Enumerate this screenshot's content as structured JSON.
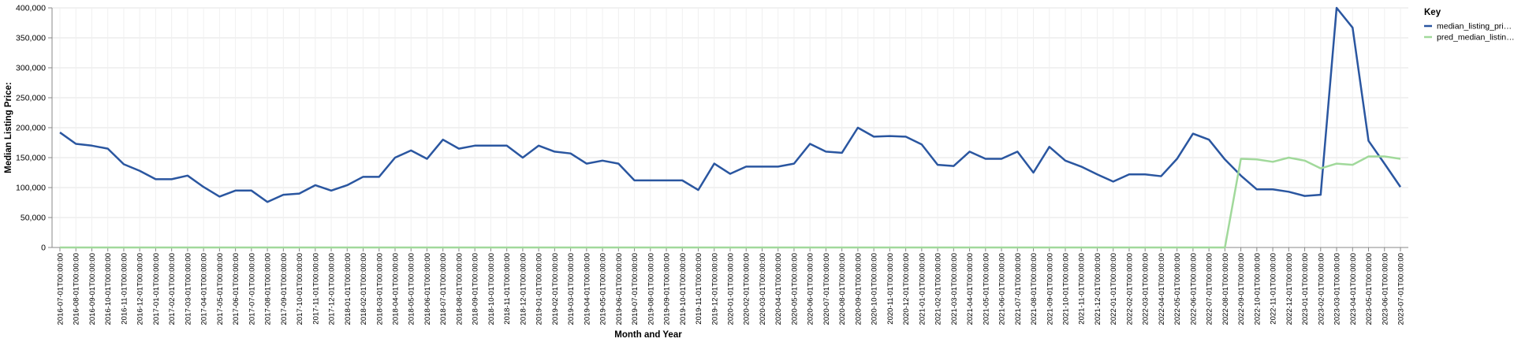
{
  "chart_data": {
    "type": "line",
    "x_label": "Month and Year",
    "y_label": "Median Listing Price:",
    "legend_title": "Key",
    "legend": "right",
    "grid": true,
    "categories": [
      "2016-07-01T00:00:00",
      "2016-08-01T00:00:00",
      "2016-09-01T00:00:00",
      "2016-10-01T00:00:00",
      "2016-11-01T00:00:00",
      "2016-12-01T00:00:00",
      "2017-01-01T00:00:00",
      "2017-02-01T00:00:00",
      "2017-03-01T00:00:00",
      "2017-04-01T00:00:00",
      "2017-05-01T00:00:00",
      "2017-06-01T00:00:00",
      "2017-07-01T00:00:00",
      "2017-08-01T00:00:00",
      "2017-09-01T00:00:00",
      "2017-10-01T00:00:00",
      "2017-11-01T00:00:00",
      "2017-12-01T00:00:00",
      "2018-01-01T00:00:00",
      "2018-02-01T00:00:00",
      "2018-03-01T00:00:00",
      "2018-04-01T00:00:00",
      "2018-05-01T00:00:00",
      "2018-06-01T00:00:00",
      "2018-07-01T00:00:00",
      "2018-08-01T00:00:00",
      "2018-09-01T00:00:00",
      "2018-10-01T00:00:00",
      "2018-11-01T00:00:00",
      "2018-12-01T00:00:00",
      "2019-01-01T00:00:00",
      "2019-02-01T00:00:00",
      "2019-03-01T00:00:00",
      "2019-04-01T00:00:00",
      "2019-05-01T00:00:00",
      "2019-06-01T00:00:00",
      "2019-07-01T00:00:00",
      "2019-08-01T00:00:00",
      "2019-09-01T00:00:00",
      "2019-10-01T00:00:00",
      "2019-11-01T00:00:00",
      "2019-12-01T00:00:00",
      "2020-01-01T00:00:00",
      "2020-02-01T00:00:00",
      "2020-03-01T00:00:00",
      "2020-04-01T00:00:00",
      "2020-05-01T00:00:00",
      "2020-06-01T00:00:00",
      "2020-07-01T00:00:00",
      "2020-08-01T00:00:00",
      "2020-09-01T00:00:00",
      "2020-10-01T00:00:00",
      "2020-11-01T00:00:00",
      "2020-12-01T00:00:00",
      "2021-01-01T00:00:00",
      "2021-02-01T00:00:00",
      "2021-03-01T00:00:00",
      "2021-04-01T00:00:00",
      "2021-05-01T00:00:00",
      "2021-06-01T00:00:00",
      "2021-07-01T00:00:00",
      "2021-08-01T00:00:00",
      "2021-09-01T00:00:00",
      "2021-10-01T00:00:00",
      "2021-11-01T00:00:00",
      "2021-12-01T00:00:00",
      "2022-01-01T00:00:00",
      "2022-02-01T00:00:00",
      "2022-03-01T00:00:00",
      "2022-04-01T00:00:00",
      "2022-05-01T00:00:00",
      "2022-06-01T00:00:00",
      "2022-07-01T00:00:00",
      "2022-08-01T00:00:00",
      "2022-09-01T00:00:00",
      "2022-10-01T00:00:00",
      "2022-11-01T00:00:00",
      "2022-12-01T00:00:00",
      "2023-01-01T00:00:00",
      "2023-02-01T00:00:00",
      "2023-03-01T00:00:00",
      "2023-04-01T00:00:00",
      "2023-05-01T00:00:00",
      "2023-06-01T00:00:00",
      "2023-07-01T00:00:00"
    ],
    "series": [
      {
        "name": "median_listing_pri…",
        "color": "#2a56a0",
        "values": [
          192000,
          173000,
          170000,
          165000,
          139000,
          128000,
          114000,
          114000,
          120000,
          101000,
          85000,
          95000,
          95000,
          76000,
          88000,
          90000,
          104000,
          95000,
          104000,
          118000,
          118000,
          150000,
          162000,
          148000,
          180000,
          165000,
          170000,
          170000,
          170000,
          150000,
          170000,
          160000,
          157000,
          140000,
          145000,
          140000,
          112000,
          112000,
          112000,
          112000,
          96000,
          140000,
          123000,
          135000,
          135000,
          135000,
          140000,
          173000,
          160000,
          158000,
          200000,
          185000,
          186000,
          185000,
          172000,
          138000,
          136000,
          160000,
          148000,
          148000,
          160000,
          125000,
          168000,
          145000,
          135000,
          122000,
          110000,
          122000,
          122000,
          119000,
          148000,
          190000,
          180000,
          147000,
          120000,
          97000,
          97000,
          93000,
          86000,
          88000,
          400000,
          367000,
          178000,
          140000,
          101000
        ]
      },
      {
        "name": "pred_median_listin…",
        "color": "#a1d99b",
        "values": [
          0,
          0,
          0,
          0,
          0,
          0,
          0,
          0,
          0,
          0,
          0,
          0,
          0,
          0,
          0,
          0,
          0,
          0,
          0,
          0,
          0,
          0,
          0,
          0,
          0,
          0,
          0,
          0,
          0,
          0,
          0,
          0,
          0,
          0,
          0,
          0,
          0,
          0,
          0,
          0,
          0,
          0,
          0,
          0,
          0,
          0,
          0,
          0,
          0,
          0,
          0,
          0,
          0,
          0,
          0,
          0,
          0,
          0,
          0,
          0,
          0,
          0,
          0,
          0,
          0,
          0,
          0,
          0,
          0,
          0,
          0,
          0,
          0,
          0,
          148000,
          147000,
          143000,
          150000,
          145000,
          132000,
          140000,
          138000,
          152000,
          152000,
          148000
        ]
      }
    ],
    "ylim": [
      0,
      400000
    ],
    "yticks": [
      0,
      {
        "value": 50000,
        "label": "50,000"
      },
      {
        "value": 100000,
        "label": "100,000"
      },
      {
        "value": 150000,
        "label": "150,000"
      },
      {
        "value": 200000,
        "label": "200,000"
      },
      {
        "value": 250000,
        "label": "250,000"
      },
      {
        "value": 300000,
        "label": "300,000"
      },
      {
        "value": 350000,
        "label": "350,000"
      },
      {
        "value": 400000,
        "label": "400,000"
      }
    ]
  }
}
